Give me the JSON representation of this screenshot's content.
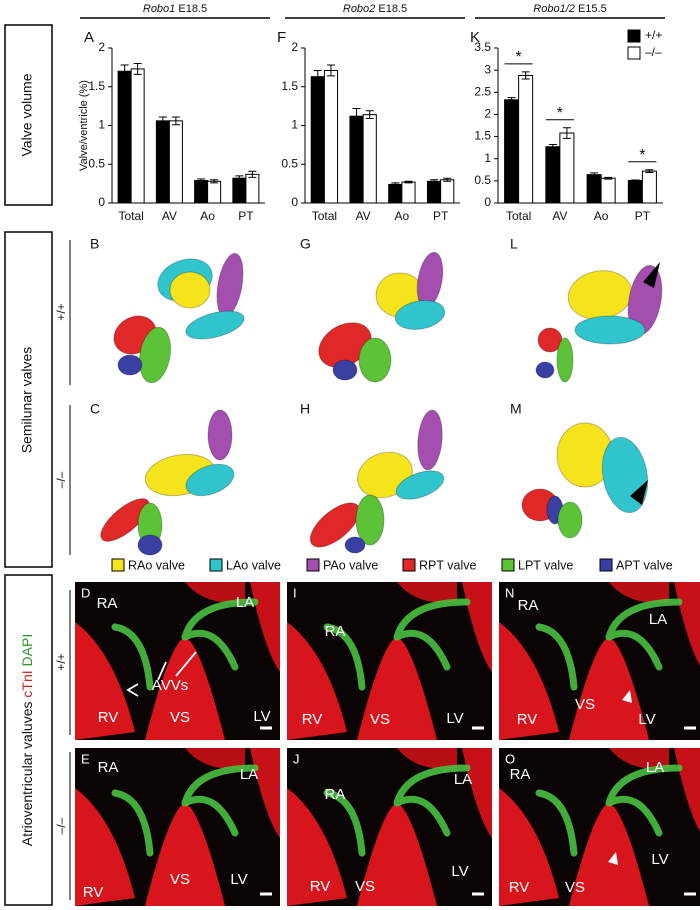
{
  "headers": [
    {
      "gene": "Robo1",
      "stage": "E18.5"
    },
    {
      "gene": "Robo2",
      "stage": "E18.5"
    },
    {
      "gene": "Robo1/2",
      "stage": "E15.5"
    }
  ],
  "row_labels": {
    "valve_volume": "Valve volume",
    "semilunar": "Semilunar valves",
    "av": {
      "main": "Atrioventricular valuves",
      "red": "cTnI",
      "green": "DAPI"
    }
  },
  "genotypes": [
    "+/+",
    "–/–"
  ],
  "chart_data": [
    {
      "type": "bar",
      "letter": "A",
      "ylabel": "Valve/ventricle (%)",
      "categories": [
        "Total",
        "AV",
        "Ao",
        "PT"
      ],
      "series": [
        {
          "name": "+/+",
          "color": "#000000",
          "values": [
            1.7,
            1.06,
            0.29,
            0.32
          ],
          "errors": [
            0.08,
            0.05,
            0.02,
            0.03
          ]
        },
        {
          "name": "–/–",
          "color": "#ffffff",
          "values": [
            1.73,
            1.06,
            0.28,
            0.37
          ],
          "errors": [
            0.07,
            0.05,
            0.02,
            0.04
          ]
        }
      ],
      "ylim": [
        0,
        2
      ],
      "yticks": [
        0,
        0.5,
        1,
        1.5,
        2
      ],
      "legend": false
    },
    {
      "type": "bar",
      "letter": "F",
      "categories": [
        "Total",
        "AV",
        "Ao",
        "PT"
      ],
      "series": [
        {
          "name": "+/+",
          "color": "#000000",
          "values": [
            1.63,
            1.12,
            0.24,
            0.28
          ],
          "errors": [
            0.08,
            0.1,
            0.02,
            0.02
          ]
        },
        {
          "name": "–/–",
          "color": "#ffffff",
          "values": [
            1.71,
            1.14,
            0.27,
            0.3
          ],
          "errors": [
            0.07,
            0.05,
            0.01,
            0.02
          ]
        }
      ],
      "ylim": [
        0,
        2
      ],
      "yticks": [
        0,
        0.5,
        1,
        1.5,
        2
      ],
      "legend": false
    },
    {
      "type": "bar",
      "letter": "K",
      "categories": [
        "Total",
        "AV",
        "Ao",
        "PT"
      ],
      "series": [
        {
          "name": "+/+",
          "color": "#000000",
          "values": [
            2.33,
            1.27,
            0.64,
            0.51
          ],
          "errors": [
            0.05,
            0.05,
            0.04,
            0.01
          ]
        },
        {
          "name": "–/–",
          "color": "#ffffff",
          "values": [
            2.88,
            1.58,
            0.56,
            0.72
          ],
          "errors": [
            0.08,
            0.12,
            0.02,
            0.03
          ]
        }
      ],
      "annotations": [
        "*",
        "*",
        "*"
      ],
      "ylim": [
        0,
        3.5
      ],
      "yticks": [
        0,
        0.5,
        1,
        1.5,
        2,
        2.5,
        3,
        3.5
      ],
      "legend": true
    }
  ],
  "semilunar_letters": [
    "B",
    "G",
    "L",
    "C",
    "H",
    "M"
  ],
  "valve_legend": [
    {
      "name": "RAo valve",
      "color": "#f5e31c"
    },
    {
      "name": "LAo valve",
      "color": "#30c4cc"
    },
    {
      "name": "PAo valve",
      "color": "#a44fb0"
    },
    {
      "name": "RPT valve",
      "color": "#e02828"
    },
    {
      "name": "LPT valve",
      "color": "#5cc238"
    },
    {
      "name": "APT valve",
      "color": "#3a3fa4"
    }
  ],
  "av_panels": [
    {
      "letter": "D",
      "labels": [
        "RA",
        "LA",
        "AVVs",
        "RV",
        "VS",
        "LV"
      ]
    },
    {
      "letter": "I",
      "labels": [
        "RA",
        "RV",
        "VS",
        "LV"
      ]
    },
    {
      "letter": "N",
      "labels": [
        "RA",
        "LA",
        "RV",
        "VS",
        "LV"
      ]
    },
    {
      "letter": "E",
      "labels": [
        "RA",
        "LA",
        "RV",
        "VS",
        "LV"
      ]
    },
    {
      "letter": "J",
      "labels": [
        "RA",
        "LA",
        "RV",
        "VS",
        "LV"
      ]
    },
    {
      "letter": "O",
      "labels": [
        "RA",
        "LA",
        "RV",
        "VS",
        "LV"
      ]
    }
  ]
}
